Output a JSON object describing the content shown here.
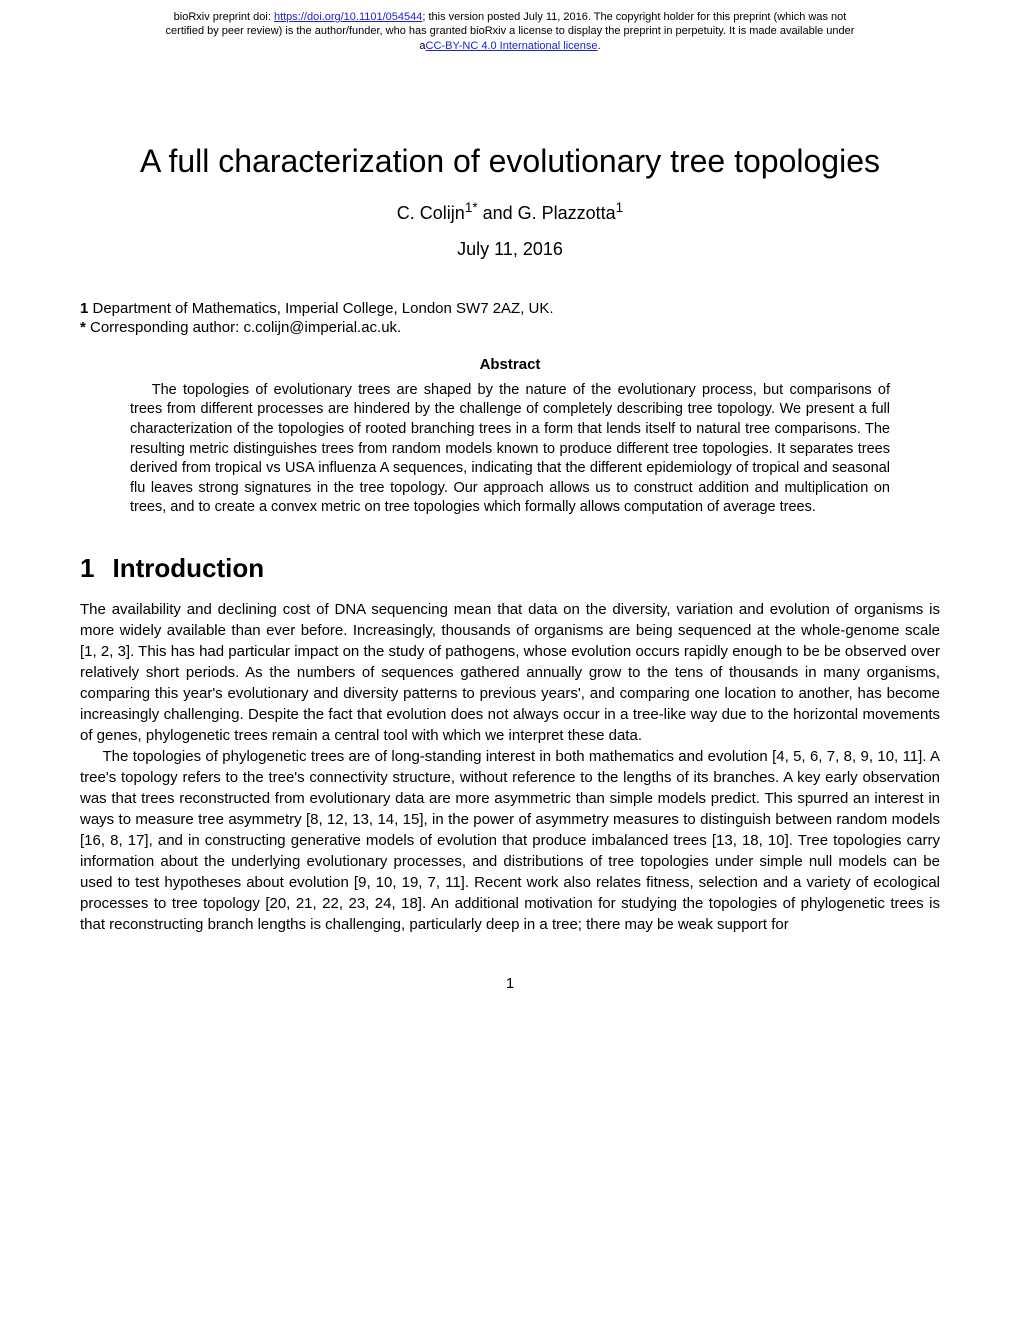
{
  "preprint": {
    "line1_prefix": "bioRxiv preprint doi: ",
    "doi_url": "https://doi.org/10.1101/054544",
    "line1_suffix": "; this version posted July 11, 2016. The copyright holder for this preprint (which was not",
    "line2": "certified by peer review) is the author/funder, who has granted bioRxiv a license to display the preprint in perpetuity. It is made available under",
    "license_prefix": "a",
    "license_text": "CC-BY-NC 4.0 International license",
    "license_suffix": "."
  },
  "title": "A full characterization of evolutionary tree topologies",
  "authors_html": "C. Colijn<sup>1*</sup> and G. Plazzotta<sup>1</sup>",
  "authors_plain_prefix": "C. Colijn",
  "authors_sup1": "1*",
  "authors_mid": " and G. Plazzotta",
  "authors_sup2": "1",
  "date": "July 11, 2016",
  "affiliation_label": "1",
  "affiliation_text": " Department of Mathematics, Imperial College, London SW7 2AZ, UK.",
  "corresponding_label": "*",
  "corresponding_text": " Corresponding author: c.colijn@imperial.ac.uk.",
  "abstract_heading": "Abstract",
  "abstract": "The topologies of evolutionary trees are shaped by the nature of the evolutionary process, but comparisons of trees from different processes are hindered by the challenge of completely describing tree topology. We present a full characterization of the topologies of rooted branching trees in a form that lends itself to natural tree comparisons. The resulting metric distinguishes trees from random models known to produce different tree topologies. It separates trees derived from tropical vs USA influenza A sequences, indicating that the different epidemiology of tropical and seasonal flu leaves strong signatures in the tree topology. Our approach allows us to construct addition and multiplication on trees, and to create a convex metric on tree topologies which formally allows computation of average trees.",
  "section1_number": "1",
  "section1_title": "Introduction",
  "para1": "The availability and declining cost of DNA sequencing mean that data on the diversity, variation and evolution of organisms is more widely available than ever before. Increasingly, thousands of organisms are being sequenced at the whole-genome scale [1, 2, 3]. This has had particular impact on the study of pathogens, whose evolution occurs rapidly enough to be be observed over relatively short periods. As the numbers of sequences gathered annually grow to the tens of thousands in many organisms, comparing this year's evolutionary and diversity patterns to previous years', and comparing one location to another, has become increasingly challenging. Despite the fact that evolution does not always occur in a tree-like way due to the horizontal movements of genes, phylogenetic trees remain a central tool with which we interpret these data.",
  "para2": "The topologies of phylogenetic trees are of long-standing interest in both mathematics and evolution [4, 5, 6, 7, 8, 9, 10, 11]. A tree's topology refers to the tree's connectivity structure, without reference to the lengths of its branches. A key early observation was that trees reconstructed from evolutionary data are more asymmetric than simple models predict. This spurred an interest in ways to measure tree asymmetry [8, 12, 13, 14, 15], in the power of asymmetry measures to distinguish between random models [16, 8, 17], and in constructing generative models of evolution that produce imbalanced trees [13, 18, 10]. Tree topologies carry information about the underlying evolutionary processes, and distributions of tree topologies under simple null models can be used to test hypotheses about evolution [9, 10, 19, 7, 11]. Recent work also relates fitness, selection and a variety of ecological processes to tree topology [20, 21, 22, 23, 24, 18]. An additional motivation for studying the topologies of phylogenetic trees is that reconstructing branch lengths is challenging, particularly deep in a tree; there may be weak support for",
  "page_number": "1",
  "styles": {
    "background": "#ffffff",
    "text_color": "#000000",
    "link_color": "#2020d0",
    "title_fontsize": 32,
    "authors_fontsize": 18,
    "date_fontsize": 18,
    "body_fontsize": 15,
    "abstract_fontsize": 14.5,
    "section_heading_fontsize": 26,
    "preprint_fontsize": 11
  }
}
